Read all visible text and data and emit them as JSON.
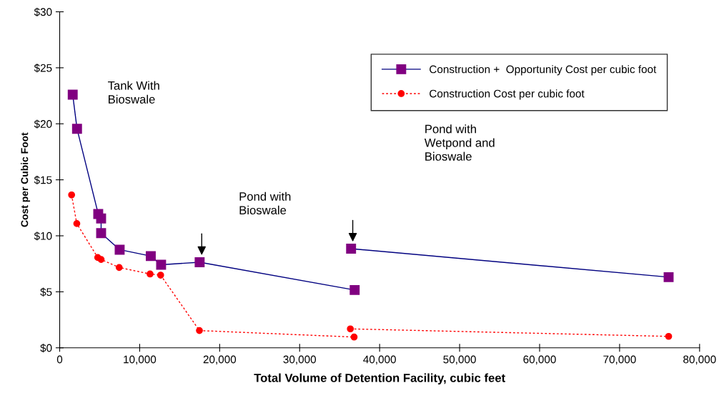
{
  "chart_data": {
    "type": "line",
    "xlabel": "Total Volume of Detention Facility, cubic feet",
    "ylabel": "Cost per Cubic Foot",
    "series": [
      {
        "name": "Construction +  Opportunity Cost per cubic foot",
        "color": "#000080",
        "marker": "square",
        "line_style": "solid",
        "x": [
          1630,
          2170,
          4820,
          5180,
          5180,
          7500,
          11390,
          12680,
          17500,
          36880,
          null,
          36430,
          76130
        ],
        "values": [
          22.6,
          19.55,
          11.95,
          11.55,
          10.24,
          8.76,
          8.19,
          7.42,
          7.64,
          5.16,
          null,
          8.85,
          6.31
        ]
      },
      {
        "name": "Construction Cost per cubic foot",
        "color": "#ff0000",
        "marker": "circle",
        "line_style": "dotted",
        "x": [
          1490,
          2140,
          4760,
          5180,
          7440,
          11300,
          12620,
          17470,
          36810,
          null,
          36340,
          76130
        ],
        "values": [
          13.65,
          11.09,
          8.06,
          7.89,
          7.17,
          6.59,
          6.49,
          1.54,
          0.96,
          null,
          1.69,
          1.02
        ]
      }
    ],
    "xlim": [
      0,
      80000
    ],
    "xticks": [
      0,
      {
        "value": 10000,
        "label": "10,000"
      },
      {
        "value": 20000,
        "label": "20,000"
      },
      {
        "value": 30000,
        "label": "30,000"
      },
      {
        "value": 40000,
        "label": "40,000"
      },
      {
        "value": 50000,
        "label": "50,000"
      },
      {
        "value": 60000,
        "label": "60,000"
      },
      {
        "value": 70000,
        "label": "70,000"
      },
      {
        "value": 80000,
        "label": "80,000"
      }
    ],
    "ylim": [
      0,
      30
    ],
    "yticks": [
      {
        "value": 0,
        "label": "$0"
      },
      {
        "value": 5,
        "label": "$5"
      },
      {
        "value": 10,
        "label": "$10"
      },
      {
        "value": 15,
        "label": "$15"
      },
      {
        "value": 20,
        "label": "$20"
      },
      {
        "value": 25,
        "label": "$25"
      },
      {
        "value": 30,
        "label": "$30"
      }
    ],
    "annotations": [
      "Tank With\nBioswale",
      "Pond with\nBioswale",
      "Pond with\nWetpond and\nBioswale"
    ],
    "legend": "top right",
    "grid": false
  }
}
